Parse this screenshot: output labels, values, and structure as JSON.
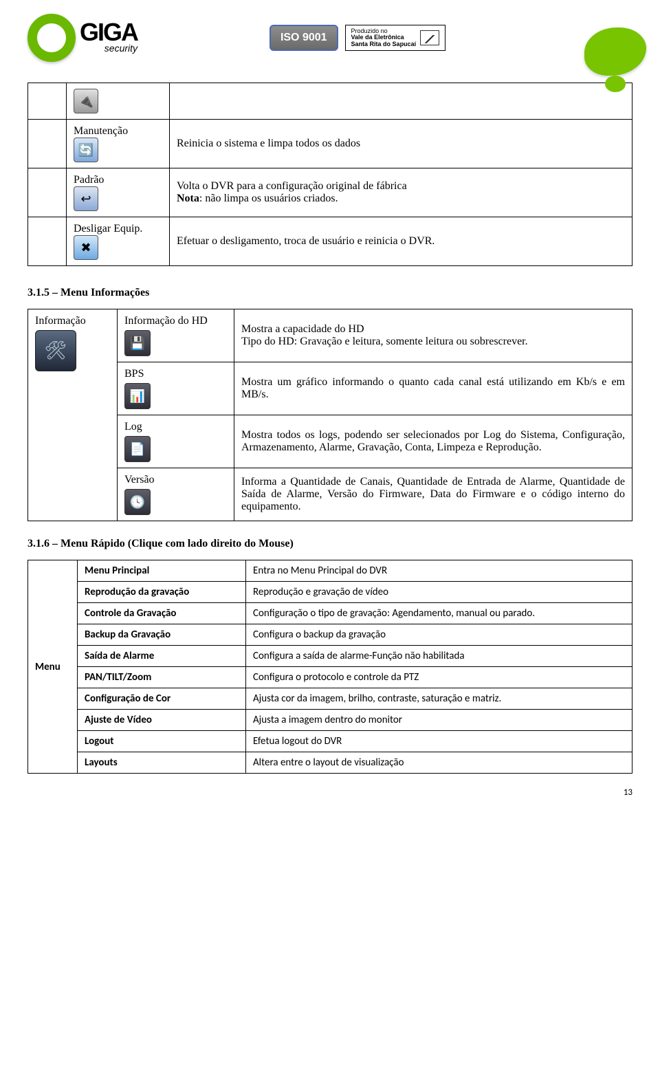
{
  "header": {
    "brand_word": "GIGA",
    "brand_sub": "security",
    "iso_label": "ISO 9001",
    "santa_l1": "Produzido no",
    "santa_l2": "Vale da Eletrônica",
    "santa_l3": "Santa Rita do Sapucaí"
  },
  "maint_table": {
    "rows": [
      {
        "label": "",
        "desc": "",
        "icon_glyph": "🔌",
        "icon_bg": "linear-gradient(#e0e0e0,#9a9a9a)"
      },
      {
        "label": "Manutenção",
        "desc": "Reinicia o sistema e limpa todos os dados",
        "icon_glyph": "🔄",
        "icon_bg": "linear-gradient(#d9e6f8,#7fa7da)"
      },
      {
        "label": "Padrão",
        "desc": "Volta o DVR para a configuração original de fábrica\nNota: não limpa os usuários criados.",
        "icon_glyph": "↩",
        "icon_bg": "linear-gradient(#dce5f2,#8aa8d6)"
      },
      {
        "label": "Desligar Equip.",
        "desc": "Efetuar o desligamento, troca de usuário e reinicia o DVR.",
        "icon_glyph": "✖",
        "icon_bg": "linear-gradient(#d2e8fb,#6ea9e0)"
      }
    ]
  },
  "section_315": "3.1.5 – Menu Informações",
  "info_table": {
    "header_label": "Informação",
    "rows": [
      {
        "label": "Informação do HD",
        "desc": "Mostra a capacidade do HD\nTipo do HD: Gravação e leitura, somente leitura ou sobrescrever.",
        "icon_glyph": "💾"
      },
      {
        "label": "BPS",
        "desc": "Mostra um gráfico informando o quanto cada canal está utilizando em Kb/s e em MB/s.",
        "icon_glyph": "📊"
      },
      {
        "label": "Log",
        "desc": "Mostra todos os logs, podendo ser selecionados por Log do Sistema, Configuração, Armazenamento, Alarme, Gravação, Conta, Limpeza e Reprodução.",
        "icon_glyph": "📄"
      },
      {
        "label": "Versão",
        "desc": "Informa a Quantidade de Canais, Quantidade de Entrada de Alarme, Quantidade de Saída de Alarme, Versão do Firmware, Data do Firmware e o código interno do equipamento.",
        "icon_glyph": "🕓"
      }
    ]
  },
  "section_316": "3.1.6 – Menu Rápido (Clique com lado direito do Mouse)",
  "quick_table": {
    "menu_label": "Menu",
    "rows": [
      {
        "label": "Menu Principal",
        "desc": "Entra no Menu Principal do DVR"
      },
      {
        "label": "Reprodução da gravação",
        "desc": "Reprodução e gravação de vídeo"
      },
      {
        "label": "Controle da Gravação",
        "desc": "Configuração o tipo de gravação: Agendamento, manual ou parado."
      },
      {
        "label": "Backup da Gravação",
        "desc": "Configura o backup da gravação"
      },
      {
        "label": "Saída de Alarme",
        "desc": "Configura a saída de alarme-Função não habilitada"
      },
      {
        "label": "PAN/TILT/Zoom",
        "desc": "Configura o protocolo e controle da PTZ"
      },
      {
        "label": "Configuração de Cor",
        "desc": "Ajusta cor da imagem, brilho, contraste, saturação e matriz."
      },
      {
        "label": "Ajuste de Vídeo",
        "desc": "Ajusta a imagem dentro do monitor"
      },
      {
        "label": "Logout",
        "desc": "Efetua logout do DVR"
      },
      {
        "label": "Layouts",
        "desc": "Altera entre o layout de visualização"
      }
    ]
  },
  "page_number": "13"
}
